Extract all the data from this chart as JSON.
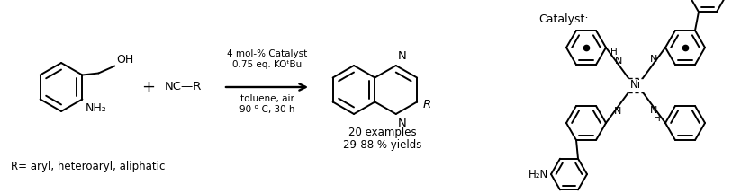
{
  "fig_width": 8.23,
  "fig_height": 2.15,
  "dpi": 100,
  "bg_color": "#ffffff",
  "lc": "#000000",
  "lw": 1.4,
  "arrow_text_line1": "4 mol-% Catalyst",
  "arrow_text_line2": "0.75 eq. KOᵗBu",
  "arrow_text_line3": "toluene, air",
  "arrow_text_line4": "90 º C, 30 h",
  "text_examples": "20 examples",
  "text_yields": "29-88 % yields",
  "text_rrange": "R= aryl, heteroaryl, aliphatic",
  "text_catalyst": "Catalyst:",
  "oh": "OH",
  "nh2": "NH₂",
  "h2n": "H₂N",
  "nc_r": "NC—R",
  "r_it": "R",
  "n_lbl": "N",
  "ni_lbl": "Ni",
  "h_lbl": "H",
  "plus": "+"
}
